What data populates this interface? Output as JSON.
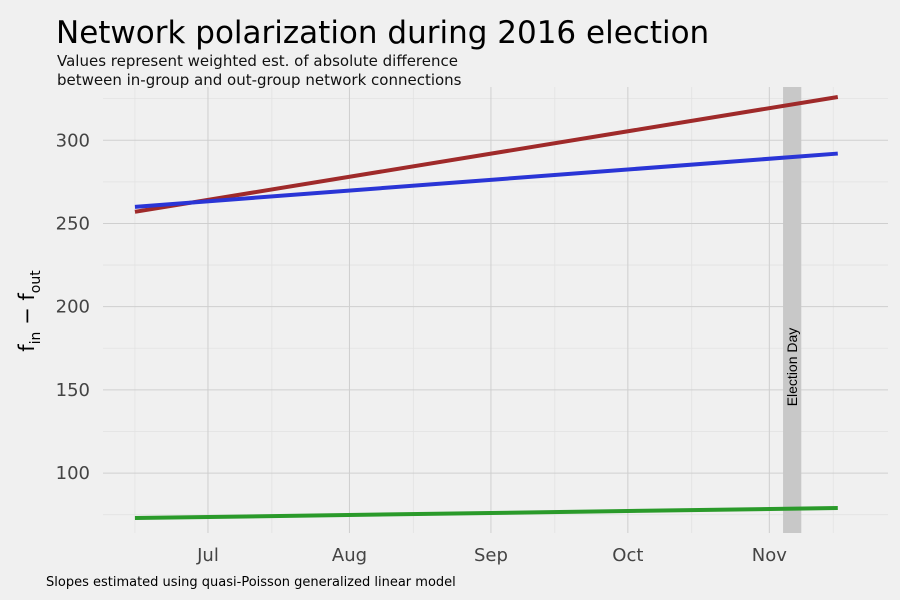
{
  "chart_data": {
    "type": "line",
    "title": "Network polarization during 2016 election",
    "subtitle_lines": [
      "Values represent weighted est. of absolute difference",
      "between in-group and out-group network connections"
    ],
    "ylabel": {
      "base1": "f",
      "sub1": "in",
      "sep": " − ",
      "base2": "f",
      "sub2": "out"
    },
    "caption": "Slopes estimated using quasi-Poisson generalized linear model",
    "x_axis": {
      "type": "date",
      "range": [
        "2016-06-08",
        "2016-11-27"
      ],
      "ticks": [
        {
          "value": "2016-07-01",
          "label": "Jul"
        },
        {
          "value": "2016-08-01",
          "label": "Aug"
        },
        {
          "value": "2016-09-01",
          "label": "Sep"
        },
        {
          "value": "2016-10-01",
          "label": "Oct"
        },
        {
          "value": "2016-11-01",
          "label": "Nov"
        }
      ],
      "minor_ticks": [
        "2016-06-15",
        "2016-07-15",
        "2016-08-15",
        "2016-09-15",
        "2016-10-15",
        "2016-11-15"
      ]
    },
    "y_axis": {
      "range": [
        64,
        332
      ],
      "ticks": [
        100,
        150,
        200,
        250,
        300
      ],
      "minor_ticks": [
        75,
        125,
        175,
        225,
        275,
        325
      ]
    },
    "grid": true,
    "legend": "none",
    "series": [
      {
        "color": "#9f2a2a",
        "x": [
          "2016-06-15",
          "2016-11-16"
        ],
        "y": [
          257,
          326
        ]
      },
      {
        "color": "#2a35d6",
        "x": [
          "2016-06-15",
          "2016-11-16"
        ],
        "y": [
          260,
          292
        ]
      },
      {
        "color": "#2a9a2a",
        "x": [
          "2016-06-15",
          "2016-11-16"
        ],
        "y": [
          73,
          79
        ]
      }
    ],
    "annotation": {
      "label": "Election Day",
      "band": [
        "2016-11-04",
        "2016-11-08"
      ],
      "color": "#c8c8c8"
    }
  }
}
